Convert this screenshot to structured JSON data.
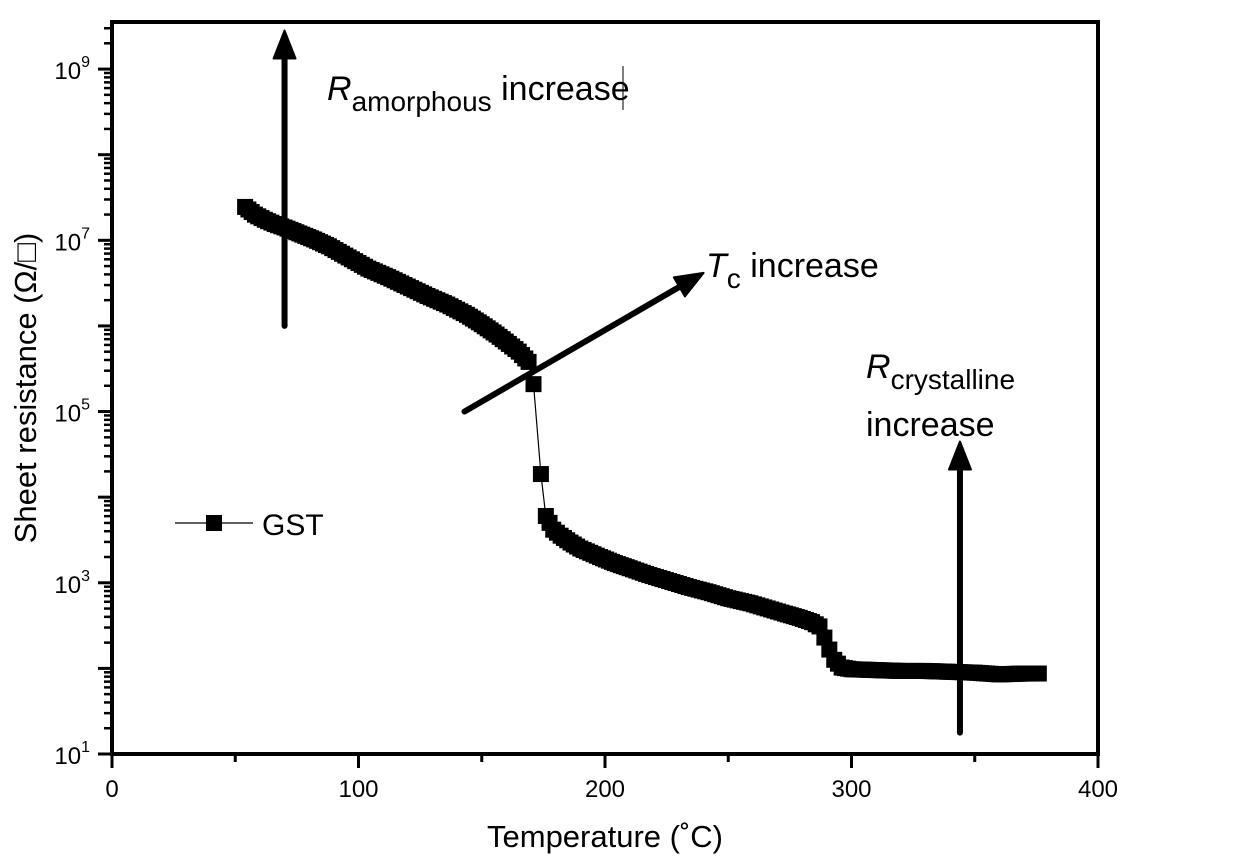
{
  "chart_data": {
    "type": "scatter",
    "title": "",
    "xlabel": "Temperature (˚C)",
    "ylabel": "Sheet resistance (Ω/□)",
    "xlim": [
      0,
      400
    ],
    "ylim_log10": [
      1,
      9.55
    ],
    "yscale": "log",
    "grid": false,
    "x_ticks": [
      0,
      100,
      200,
      300,
      400
    ],
    "x_tick_labels": [
      "0",
      "100",
      "200",
      "300",
      "400"
    ],
    "y_ticks_log10": [
      1,
      3,
      5,
      7,
      9
    ],
    "y_tick_labels": [
      {
        "base": "10",
        "exp": "1"
      },
      {
        "base": "10",
        "exp": "3"
      },
      {
        "base": "10",
        "exp": "5"
      },
      {
        "base": "10",
        "exp": "7"
      },
      {
        "base": "10",
        "exp": "9"
      }
    ],
    "legend": {
      "position": "middle-left",
      "entries": [
        "GST"
      ]
    },
    "series": [
      {
        "name": "GST",
        "marker": "square",
        "color": "#000000",
        "points_log10": [
          [
            54,
            7.39
          ],
          [
            58,
            7.3
          ],
          [
            62,
            7.24
          ],
          [
            66,
            7.19
          ],
          [
            70,
            7.15
          ],
          [
            76,
            7.08
          ],
          [
            82,
            7.01
          ],
          [
            88,
            6.93
          ],
          [
            96,
            6.8
          ],
          [
            104,
            6.67
          ],
          [
            112,
            6.57
          ],
          [
            120,
            6.46
          ],
          [
            128,
            6.35
          ],
          [
            136,
            6.25
          ],
          [
            144,
            6.13
          ],
          [
            150,
            6.02
          ],
          [
            156,
            5.9
          ],
          [
            161,
            5.79
          ],
          [
            165,
            5.7
          ],
          [
            169,
            5.58
          ],
          [
            171,
            5.32
          ],
          [
            174,
            4.27
          ],
          [
            176,
            3.78
          ],
          [
            179,
            3.62
          ],
          [
            182,
            3.55
          ],
          [
            186,
            3.47
          ],
          [
            190,
            3.4
          ],
          [
            194,
            3.35
          ],
          [
            198,
            3.3
          ],
          [
            204,
            3.23
          ],
          [
            210,
            3.17
          ],
          [
            218,
            3.09
          ],
          [
            226,
            3.02
          ],
          [
            234,
            2.95
          ],
          [
            242,
            2.89
          ],
          [
            250,
            2.82
          ],
          [
            259,
            2.76
          ],
          [
            266,
            2.7
          ],
          [
            273,
            2.64
          ],
          [
            279,
            2.59
          ],
          [
            284,
            2.54
          ],
          [
            287,
            2.49
          ],
          [
            289,
            2.36
          ],
          [
            291,
            2.22
          ],
          [
            293,
            2.1
          ],
          [
            296,
            2.01
          ],
          [
            300,
            1.99
          ],
          [
            310,
            1.98
          ],
          [
            320,
            1.97
          ],
          [
            330,
            1.97
          ],
          [
            340,
            1.96
          ],
          [
            350,
            1.95
          ],
          [
            360,
            1.93
          ],
          [
            370,
            1.94
          ],
          [
            376,
            1.94
          ]
        ]
      }
    ],
    "annotations": [
      {
        "text_main": "R",
        "text_sub": "amorphous",
        "text_after": " increase",
        "arrow": "up",
        "arrow_x": 70,
        "arrow_from_log10": 6.0,
        "arrow_to_log10": 9.45
      },
      {
        "text_main": "T",
        "text_sub": "c",
        "text_after": " increase",
        "arrow": "diagonal",
        "arrow_from": [
          143,
          5.0
        ],
        "arrow_to": [
          240,
          6.62
        ]
      },
      {
        "text_main": "R",
        "text_sub": "crystalline",
        "text_line2": "increase",
        "arrow": "up",
        "arrow_x": 344,
        "arrow_from_log10": 1.25,
        "arrow_to_log10": 4.65
      }
    ]
  }
}
